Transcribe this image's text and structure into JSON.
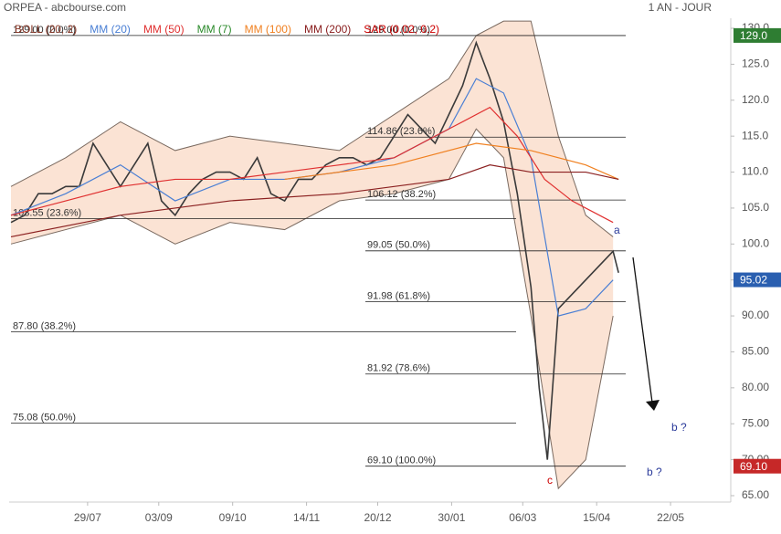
{
  "header": {
    "title": "ORPEA - abcbourse.com",
    "period": "1 AN - JOUR"
  },
  "legend": [
    {
      "label": "BOLL (20, 2)",
      "color": "#8b3a2a"
    },
    {
      "label": "MM (20)",
      "color": "#4a7fd4"
    },
    {
      "label": "MM (50)",
      "color": "#e03030"
    },
    {
      "label": "MM (7)",
      "color": "#2a8a2a"
    },
    {
      "label": "MM (100)",
      "color": "#f08020"
    },
    {
      "label": "MM (200)",
      "color": "#8b2020"
    },
    {
      "label": "SAR (0.02, 0.2)",
      "color": "#cc0000"
    }
  ],
  "chart_data": {
    "type": "line",
    "xlim": [
      0,
      263
    ],
    "xticks": [
      {
        "value": 28,
        "label": "29/07"
      },
      {
        "value": 54,
        "label": "03/09"
      },
      {
        "value": 81,
        "label": "09/10"
      },
      {
        "value": 108,
        "label": "14/11"
      },
      {
        "value": 134,
        "label": "20/12"
      },
      {
        "value": 161,
        "label": "30/01"
      },
      {
        "value": 187,
        "label": "06/03"
      },
      {
        "value": 214,
        "label": "15/04"
      },
      {
        "value": 241,
        "label": "22/05"
      }
    ],
    "ylim": [
      65,
      130
    ],
    "yticks": [
      {
        "value": 130,
        "label": "130.0"
      },
      {
        "value": 125,
        "label": "125.0"
      },
      {
        "value": 120,
        "label": "120.0"
      },
      {
        "value": 115,
        "label": "115.0"
      },
      {
        "value": 110,
        "label": "110.0"
      },
      {
        "value": 105,
        "label": "105.0"
      },
      {
        "value": 100,
        "label": "100.0"
      },
      {
        "value": 95,
        "label": "95.00"
      },
      {
        "value": 90,
        "label": "90.00"
      },
      {
        "value": 85,
        "label": "85.00"
      },
      {
        "value": 80,
        "label": "80.00"
      },
      {
        "value": 75,
        "label": "75.00"
      },
      {
        "value": 70,
        "label": "70.00"
      },
      {
        "value": 65,
        "label": "65.00"
      }
    ],
    "bands": {
      "color": "#fbe3d4",
      "x": [
        0,
        20,
        40,
        60,
        80,
        100,
        120,
        140,
        160,
        170,
        180,
        190,
        200,
        210,
        220
      ],
      "upper": [
        108,
        112,
        117,
        113,
        115,
        114,
        113,
        118,
        123,
        129,
        131,
        131,
        115,
        104,
        101
      ],
      "lower": [
        100,
        102,
        104,
        100,
        103,
        102,
        106,
        107,
        109,
        116,
        112,
        90,
        66,
        70,
        90
      ]
    },
    "series": [
      {
        "name": "Cours",
        "color": "#3a3a3a",
        "x": [
          0,
          5,
          10,
          15,
          20,
          25,
          30,
          35,
          40,
          45,
          50,
          55,
          60,
          65,
          70,
          75,
          80,
          85,
          90,
          95,
          100,
          105,
          110,
          115,
          120,
          125,
          130,
          135,
          140,
          145,
          150,
          155,
          160,
          165,
          170,
          175,
          180,
          185,
          190,
          193,
          196,
          200,
          205,
          210,
          215,
          220,
          222
        ],
        "values": [
          103,
          104,
          107,
          107,
          108,
          108,
          114,
          111,
          108,
          111,
          114,
          106,
          104,
          107,
          109,
          110,
          110,
          109,
          112,
          107,
          106,
          109,
          109,
          111,
          112,
          112,
          111,
          112,
          115,
          118,
          116,
          114,
          118,
          122,
          128,
          123,
          117,
          107,
          94,
          80,
          70,
          91,
          93,
          95,
          97,
          99,
          96
        ]
      },
      {
        "name": "MM (20)",
        "color": "#4a7fd4",
        "x": [
          0,
          20,
          40,
          60,
          80,
          100,
          120,
          140,
          160,
          170,
          180,
          190,
          200,
          210,
          220
        ],
        "values": [
          104,
          107,
          111,
          106,
          109,
          109,
          110,
          112,
          116,
          123,
          121,
          112,
          90,
          91,
          95
        ]
      },
      {
        "name": "MM (50)",
        "color": "#e03030",
        "x": [
          0,
          20,
          40,
          60,
          80,
          100,
          120,
          140,
          160,
          175,
          185,
          195,
          205,
          215,
          220
        ],
        "values": [
          104,
          106,
          108,
          109,
          109,
          110,
          111,
          112,
          116,
          119,
          115,
          109,
          106,
          104,
          103
        ]
      },
      {
        "name": "MM (100)",
        "color": "#f08020",
        "x": [
          100,
          140,
          170,
          190,
          210,
          222
        ],
        "values": [
          109,
          111,
          114,
          113,
          111,
          109
        ]
      },
      {
        "name": "MM (200)",
        "color": "#8b2020",
        "x": [
          0,
          40,
          80,
          120,
          160,
          175,
          190,
          210,
          222
        ],
        "values": [
          101,
          104,
          106,
          107,
          109,
          111,
          110,
          110,
          109
        ]
      }
    ],
    "fibonacci": [
      {
        "levels": [
          {
            "value": 129.0,
            "label": "129.00  (0.0%)"
          },
          {
            "value": 103.55,
            "label": "103.55  (23.6%)"
          },
          {
            "value": 87.8,
            "label": "87.80  (38.2%)"
          },
          {
            "value": 75.08,
            "label": "75.08  (50.0%)"
          }
        ]
      },
      {
        "levels": [
          {
            "value": 129.0,
            "label": "129.00  (0.0%)"
          },
          {
            "value": 114.86,
            "label": "114.86  (23.6%)"
          },
          {
            "value": 106.12,
            "label": "106.12  (38.2%)"
          },
          {
            "value": 99.05,
            "label": "99.05  (50.0%)"
          },
          {
            "value": 91.98,
            "label": "91.98  (61.8%)"
          },
          {
            "value": 81.92,
            "label": "81.92  (78.6%)"
          },
          {
            "value": 69.1,
            "label": "69.10  (100.0%)"
          }
        ]
      }
    ],
    "price_badges": [
      {
        "value": 129.0,
        "label": "129.0",
        "color": "#2e7d32"
      },
      {
        "value": 95.02,
        "label": "95.02",
        "color": "#2a5fb0"
      },
      {
        "value": 69.1,
        "label": "69.10",
        "color": "#c62828"
      }
    ],
    "annotations": [
      {
        "text": "a",
        "color": "#2a3a9a"
      },
      {
        "text": "b ?",
        "color": "#2a3a9a"
      },
      {
        "text": "b ?",
        "color": "#2a3a9a"
      },
      {
        "text": "c",
        "color": "#cc0000"
      }
    ]
  }
}
